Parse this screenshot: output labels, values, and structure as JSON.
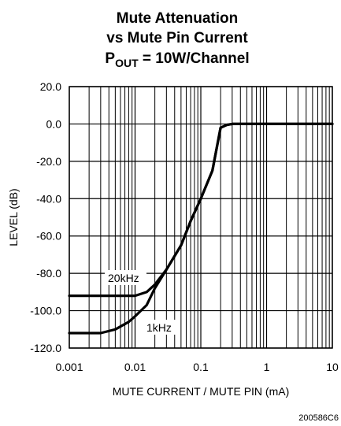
{
  "chart_data": {
    "type": "line",
    "title": [
      "Mute Attenuation",
      "vs Mute Pin Current"
    ],
    "subtitle": {
      "prefix": "P",
      "subscript": "OUT",
      "suffix": " = 10W/Channel"
    },
    "xlabel": "MUTE CURRENT / MUTE PIN (mA)",
    "ylabel": "LEVEL (dB)",
    "x_scale": "log",
    "xlim": [
      0.001,
      10
    ],
    "ylim": [
      -120,
      20
    ],
    "grid": true,
    "x_ticks": [
      0.001,
      0.01,
      0.1,
      1,
      10
    ],
    "x_tick_labels": [
      "0.001",
      "0.01",
      "0.1",
      "1",
      "10"
    ],
    "y_ticks": [
      20,
      0,
      -20,
      -40,
      -60,
      -80,
      -100,
      -120
    ],
    "y_tick_labels": [
      "20.0",
      "0.0",
      "-20.0",
      "-40.0",
      "-60.0",
      "-80.0",
      "-100.0",
      "-120.0"
    ],
    "series": [
      {
        "name": "20kHz",
        "x": [
          0.001,
          0.005,
          0.01,
          0.015,
          0.02,
          0.03,
          0.05,
          0.07,
          0.1,
          0.15,
          0.2,
          0.25,
          0.3,
          0.5,
          1,
          10
        ],
        "y": [
          -92,
          -92,
          -92,
          -90,
          -86,
          -78,
          -65,
          -52,
          -40,
          -25,
          -2,
          -0.5,
          0,
          0,
          0,
          0
        ]
      },
      {
        "name": "1kHz",
        "x": [
          0.001,
          0.003,
          0.005,
          0.008,
          0.01,
          0.015,
          0.02,
          0.03,
          0.05,
          0.07,
          0.1,
          0.15,
          0.2,
          0.25,
          0.3,
          0.5,
          1,
          10
        ],
        "y": [
          -112,
          -112,
          -110,
          -106,
          -103,
          -97,
          -88,
          -78,
          -65,
          -52,
          -40,
          -25,
          -2,
          -0.5,
          0,
          0,
          0,
          0
        ]
      }
    ]
  },
  "figure_id": "200586C6"
}
